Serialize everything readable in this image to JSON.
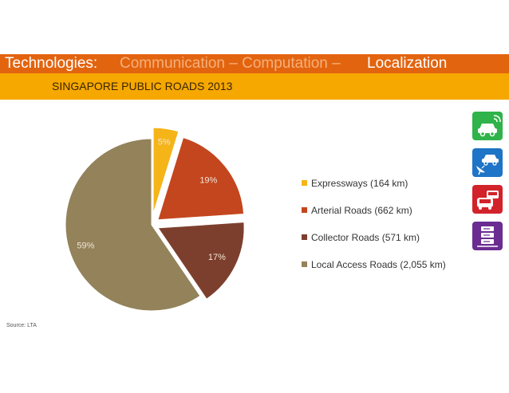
{
  "header": {
    "prefix": "Technologies:",
    "middle": "Communication – Computation –",
    "highlight": "Localization",
    "subtitle": "SINGAPORE PUBLIC ROADS 2013"
  },
  "source": "Source: LTA",
  "colors": {
    "title_bar": "#e3640f",
    "subtitle_bar": "#f6a800",
    "icon_green": "#2fb34a",
    "icon_blue": "#1e74c6",
    "icon_red": "#d2232a",
    "icon_purple": "#6a2c91"
  },
  "icons": [
    {
      "name": "connected-car-icon",
      "color": "#2fb34a"
    },
    {
      "name": "satellite-car-icon",
      "color": "#1e74c6"
    },
    {
      "name": "traffic-cars-icon",
      "color": "#d2232a"
    },
    {
      "name": "server-icon",
      "color": "#6a2c91"
    }
  ],
  "chart_data": {
    "type": "pie",
    "title": "SINGAPORE PUBLIC ROADS 2013",
    "categories": [
      "Expressways (164 km)",
      "Arterial Roads (662 km)",
      "Collector Roads (571 km)",
      "Local Access Roads (2,055 km)"
    ],
    "values": [
      164,
      662,
      571,
      2055
    ],
    "labels": [
      "5%",
      "19%",
      "17%",
      "59%"
    ],
    "colors": [
      "#f5b417",
      "#c4461e",
      "#7d3f2d",
      "#93825a"
    ],
    "exploded": true,
    "legend": "right"
  }
}
